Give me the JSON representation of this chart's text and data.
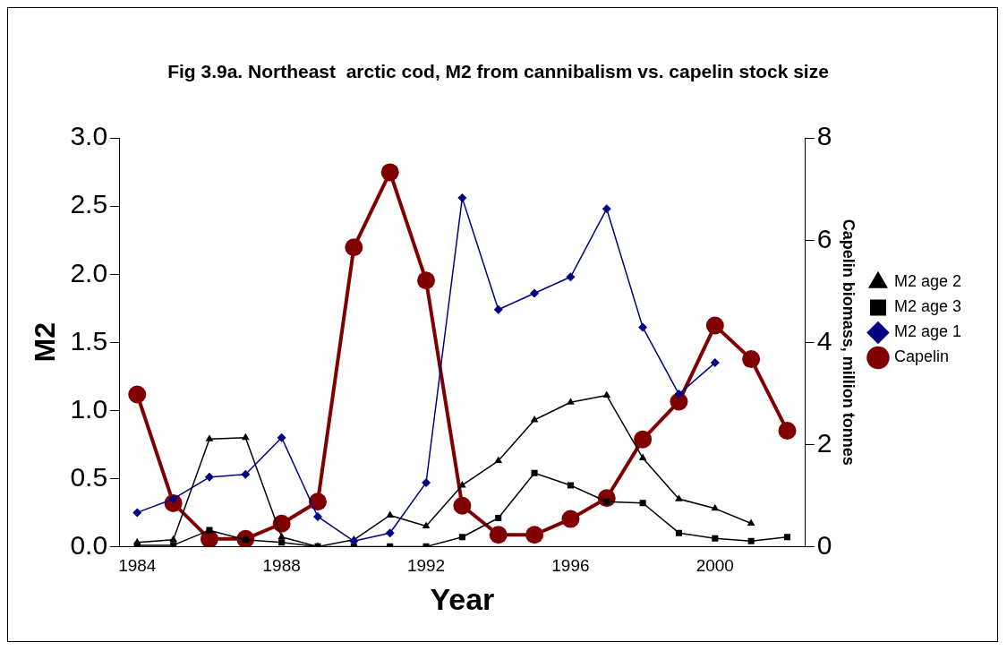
{
  "chart_data": {
    "type": "line",
    "title": "Fig 3.9a. Northeast  arctic cod, M2 from cannibalism vs. capelin stock size",
    "xlabel": "Year",
    "ylabel": "M2",
    "y2label": "Capelin biomass, million tonnes",
    "x": [
      1984,
      1985,
      1986,
      1987,
      1988,
      1989,
      1990,
      1991,
      1992,
      1993,
      1994,
      1995,
      1996,
      1997,
      1998,
      1999,
      2000,
      2001,
      2002
    ],
    "xlim": [
      1983.5,
      2002.5
    ],
    "xticks": [
      1984,
      1988,
      1992,
      1996,
      2000
    ],
    "ylim": [
      0,
      3
    ],
    "yticks": [
      {
        "value": 0,
        "label": "0.0"
      },
      {
        "value": 0.5,
        "label": "0.5"
      },
      {
        "value": 1,
        "label": "1.0"
      },
      {
        "value": 1.5,
        "label": "1.5"
      },
      {
        "value": 2,
        "label": "2.0"
      },
      {
        "value": 2.5,
        "label": "2.5"
      },
      {
        "value": 3,
        "label": "3.0"
      }
    ],
    "y2lim": [
      0,
      8
    ],
    "y2ticks": [
      0,
      2,
      4,
      6,
      8
    ],
    "grid": false,
    "legend": "right",
    "series": [
      {
        "name": "M2 age 2",
        "color": "#000000",
        "marker": "triangle",
        "values": [
          0.03,
          0.05,
          0.79,
          0.8,
          0.07,
          0.0,
          0.05,
          0.23,
          0.15,
          0.45,
          0.63,
          0.93,
          1.06,
          1.11,
          0.65,
          0.35,
          0.28,
          0.17,
          null
        ]
      },
      {
        "name": "M2 age 3",
        "color": "#000000",
        "marker": "square",
        "values": [
          0.01,
          0.01,
          0.12,
          0.05,
          0.03,
          0.0,
          0.0,
          0.0,
          0.0,
          0.07,
          0.21,
          0.54,
          0.45,
          0.33,
          0.32,
          0.1,
          0.06,
          0.04,
          0.07
        ]
      },
      {
        "name": "M2 age 1",
        "color": "#000080",
        "marker": "diamond",
        "values": [
          0.25,
          0.35,
          0.51,
          0.53,
          0.8,
          0.22,
          0.04,
          0.1,
          0.47,
          2.56,
          1.74,
          1.86,
          1.98,
          2.48,
          1.61,
          1.12,
          1.35,
          null,
          null
        ]
      },
      {
        "name": "Capelin",
        "color": "#800000",
        "marker": "circle",
        "axis": "y2",
        "values": [
          2.98,
          0.85,
          0.15,
          0.15,
          0.45,
          0.88,
          5.86,
          7.33,
          5.21,
          0.8,
          0.23,
          0.23,
          0.54,
          0.95,
          2.1,
          2.84,
          4.33,
          3.67,
          2.27
        ]
      }
    ]
  }
}
